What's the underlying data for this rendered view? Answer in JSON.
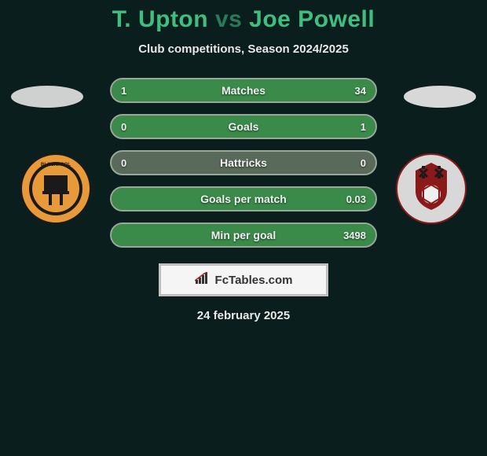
{
  "title": {
    "player1": "T. Upton",
    "vs": "vs",
    "player2": "Joe Powell",
    "player1_color": "#3fbf7f",
    "vs_color": "#2a7a5a",
    "player2_color": "#3fbf7f"
  },
  "subtitle": "Club competitions, Season 2024/2025",
  "date": "24 february 2025",
  "logo_text": "FcTables.com",
  "colors": {
    "background": "#0a1e1e",
    "bar_bg": "#5a6a5a",
    "bar_border": "#9aa79a",
    "bar_fill": "#3a8a4a",
    "text_light": "#e8e8e8",
    "ellipse_left": "#cfd0d0",
    "ellipse_right": "#d8d8d8"
  },
  "avatars": {
    "left": {
      "name": "blackpool-crest",
      "bg": "#e89a3a"
    },
    "right": {
      "name": "rotherham-crest",
      "bg": "#d8d8d8"
    }
  },
  "stats": [
    {
      "label": "Matches",
      "left_val": "1",
      "right_val": "34",
      "left_fill_pct": 4,
      "right_fill_pct": 96
    },
    {
      "label": "Goals",
      "left_val": "0",
      "right_val": "1",
      "left_fill_pct": 0,
      "right_fill_pct": 100
    },
    {
      "label": "Hattricks",
      "left_val": "0",
      "right_val": "0",
      "left_fill_pct": 0,
      "right_fill_pct": 0
    },
    {
      "label": "Goals per match",
      "left_val": "",
      "right_val": "0.03",
      "left_fill_pct": 0,
      "right_fill_pct": 100
    },
    {
      "label": "Min per goal",
      "left_val": "",
      "right_val": "3498",
      "left_fill_pct": 0,
      "right_fill_pct": 100
    }
  ]
}
